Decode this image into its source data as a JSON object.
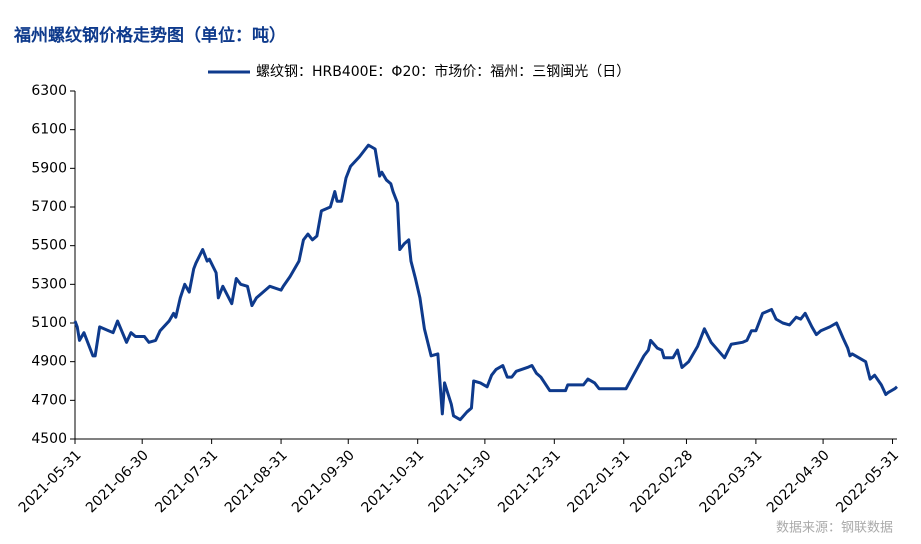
{
  "chart_data": {
    "type": "line",
    "title": "福州螺纹钢价格走势图（单位：吨）",
    "source": "数据来源：钢联数据",
    "series": [
      {
        "name": "螺纹钢：HRB400E：Φ20：市场价：福州：三钢闽光（日）",
        "color": "#0e3a8c",
        "values": [
          5110,
          5080,
          5010,
          5050,
          4930,
          4930,
          5080,
          5060,
          5050,
          5110,
          5000,
          5050,
          5030,
          5030,
          5000,
          5010,
          5060,
          5110,
          5150,
          5130,
          5230,
          5300,
          5260,
          5380,
          5410,
          5480,
          5420,
          5430,
          5360,
          5230,
          5290,
          5200,
          5330,
          5300,
          5290,
          5190,
          5230,
          5270,
          5290,
          5270,
          5290,
          5340,
          5420,
          5530,
          5560,
          5530,
          5550,
          5680,
          5700,
          5780,
          5730,
          5730,
          5850,
          5910,
          5960,
          6020,
          6000,
          5860,
          5880,
          5840,
          5820,
          5780,
          5720,
          5480,
          5510,
          5530,
          5420,
          5330,
          5230,
          5070,
          4930,
          4940,
          4630,
          4790,
          4680,
          4620,
          4600,
          4640,
          4660,
          4800,
          4790,
          4770,
          4830,
          4860,
          4880,
          4820,
          4820,
          4850,
          4870,
          4880,
          4840,
          4820,
          4750,
          4750,
          4780,
          4780,
          4780,
          4810,
          4790,
          4760,
          4760,
          4930,
          4960,
          5010,
          4970,
          4960,
          4920,
          4920,
          4960,
          4870,
          4900,
          4980,
          5070,
          5000,
          4960,
          4920,
          4990,
          5000,
          5010,
          5060,
          5060,
          5150,
          5170,
          5120,
          5100,
          5090,
          5130,
          5120,
          5150,
          5080,
          5040,
          5060,
          5080,
          5100,
          5020,
          4970,
          4930,
          4940,
          4920,
          4900,
          4810,
          4830,
          4780,
          4730,
          4740,
          4760,
          4770
        ]
      }
    ],
    "x": [
      "2021-05-31",
      "2021-06-01",
      "2021-06-02",
      "2021-06-04",
      "2021-06-08",
      "2021-06-09",
      "2021-06-11",
      "2021-06-15",
      "2021-06-17",
      "2021-06-19",
      "2021-06-23",
      "2021-06-25",
      "2021-06-27",
      "2021-07-01",
      "2021-07-03",
      "2021-07-06",
      "2021-07-08",
      "2021-07-12",
      "2021-07-14",
      "2021-07-15",
      "2021-07-17",
      "2021-07-19",
      "2021-07-21",
      "2021-07-23",
      "2021-07-24",
      "2021-07-27",
      "2021-07-29",
      "2021-07-30",
      "2021-08-02",
      "2021-08-03",
      "2021-08-05",
      "2021-08-09",
      "2021-08-11",
      "2021-08-13",
      "2021-08-16",
      "2021-08-18",
      "2021-08-20",
      "2021-08-24",
      "2021-08-26",
      "2021-08-31",
      "2021-09-01",
      "2021-09-04",
      "2021-09-08",
      "2021-09-10",
      "2021-09-12",
      "2021-09-14",
      "2021-09-16",
      "2021-09-18",
      "2021-09-22",
      "2021-09-24",
      "2021-09-25",
      "2021-09-27",
      "2021-09-29",
      "2021-10-01",
      "2021-10-05",
      "2021-10-09",
      "2021-10-12",
      "2021-10-14",
      "2021-10-15",
      "2021-10-17",
      "2021-10-19",
      "2021-10-20",
      "2021-10-22",
      "2021-10-23",
      "2021-10-25",
      "2021-10-27",
      "2021-10-28",
      "2021-10-30",
      "2021-11-01",
      "2021-11-03",
      "2021-11-06",
      "2021-11-09",
      "2021-11-11",
      "2021-11-12",
      "2021-11-15",
      "2021-11-16",
      "2021-11-19",
      "2021-11-22",
      "2021-11-24",
      "2021-11-25",
      "2021-11-28",
      "2021-12-01",
      "2021-12-03",
      "2021-12-05",
      "2021-12-08",
      "2021-12-10",
      "2021-12-12",
      "2021-12-14",
      "2021-12-19",
      "2021-12-21",
      "2021-12-23",
      "2021-12-25",
      "2021-12-29",
      "2022-01-05",
      "2022-01-06",
      "2022-01-10",
      "2022-01-13",
      "2022-01-15",
      "2022-01-18",
      "2022-01-20",
      "2022-02-01",
      "2022-02-09",
      "2022-02-11",
      "2022-02-12",
      "2022-02-15",
      "2022-02-17",
      "2022-02-18",
      "2022-02-22",
      "2022-02-24",
      "2022-02-26",
      "2022-03-01",
      "2022-03-05",
      "2022-03-08",
      "2022-03-11",
      "2022-03-14",
      "2022-03-17",
      "2022-03-20",
      "2022-03-25",
      "2022-03-27",
      "2022-03-29",
      "2022-03-31",
      "2022-04-03",
      "2022-04-07",
      "2022-04-09",
      "2022-04-12",
      "2022-04-15",
      "2022-04-18",
      "2022-04-20",
      "2022-04-22",
      "2022-04-25",
      "2022-04-27",
      "2022-04-29",
      "2022-05-03",
      "2022-05-06",
      "2022-05-09",
      "2022-05-11",
      "2022-05-12",
      "2022-05-13",
      "2022-05-16",
      "2022-05-19",
      "2022-05-21",
      "2022-05-23",
      "2022-05-26",
      "2022-05-28",
      "2022-05-29",
      "2022-06-01",
      "2022-06-02"
    ],
    "xlim": [
      "2021-05-31",
      "2022-06-02"
    ],
    "xticks": [
      "2021-05-31",
      "2021-06-30",
      "2021-07-31",
      "2021-08-31",
      "2021-09-30",
      "2021-10-31",
      "2021-11-30",
      "2021-12-31",
      "2022-01-31",
      "2022-02-28",
      "2022-03-31",
      "2022-04-30",
      "2022-05-31"
    ],
    "ylim": [
      4500,
      6300
    ],
    "yticks": [
      4500,
      4700,
      4900,
      5100,
      5300,
      5500,
      5700,
      5900,
      6100,
      6300
    ],
    "grid": false,
    "legend": "top"
  }
}
